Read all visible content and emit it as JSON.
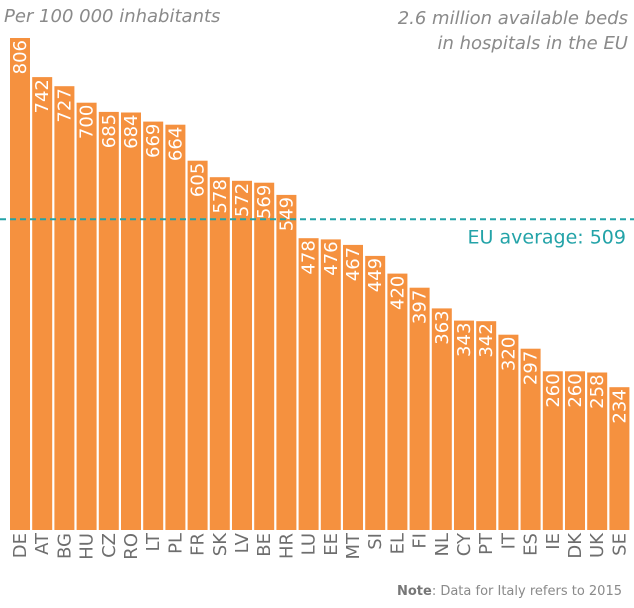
{
  "chart_data": {
    "type": "bar",
    "title": "",
    "subtitle_left": "Per 100 000 inhabitants",
    "subtitle_right": [
      "2.6 million available beds",
      "in hospitals in the EU"
    ],
    "xlabel": "",
    "ylabel": "",
    "ylim": [
      0,
      820
    ],
    "grid": false,
    "categories": [
      "DE",
      "AT",
      "BG",
      "HU",
      "CZ",
      "RO",
      "LT",
      "PL",
      "FR",
      "SK",
      "LV",
      "BE",
      "HR",
      "LU",
      "EE",
      "MT",
      "SI",
      "EL",
      "FI",
      "NL",
      "CY",
      "PT",
      "IT",
      "ES",
      "IE",
      "DK",
      "UK",
      "SE"
    ],
    "values": [
      806,
      742,
      727,
      700,
      685,
      684,
      669,
      664,
      605,
      578,
      572,
      569,
      549,
      478,
      476,
      467,
      449,
      420,
      397,
      363,
      343,
      342,
      320,
      297,
      260,
      260,
      258,
      234
    ],
    "reference_line": {
      "value": 509,
      "label": "EU average: 509",
      "color": "#23a3a8"
    },
    "bar_color": "#f5913f",
    "note": {
      "bold": "Note",
      "text": ": Data for Italy refers to 2015"
    }
  }
}
